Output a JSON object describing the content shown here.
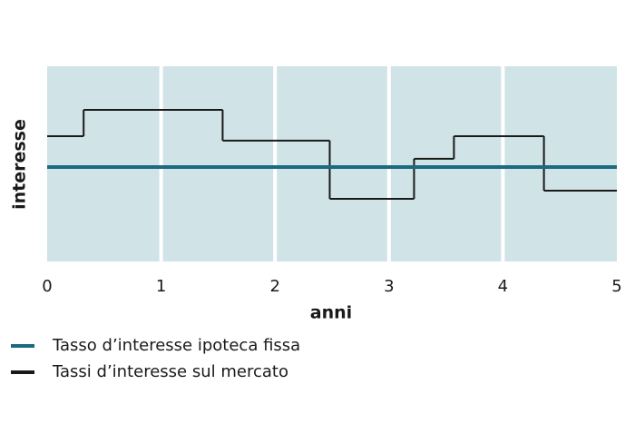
{
  "chart_data": {
    "type": "step",
    "x_label": "anni",
    "y_label": "interesse",
    "xlim": [
      0,
      5
    ],
    "xticks": [
      0,
      1,
      2,
      3,
      4,
      5
    ],
    "ylim": [
      0,
      100
    ],
    "panels": true,
    "legend": "bottom",
    "series": [
      {
        "name": "Tasso d’interesse ipoteca fissa",
        "color": "#1b6a80",
        "x": [
          0,
          5
        ],
        "values": [
          48.4,
          48.4
        ]
      },
      {
        "name": "Tassi d’interesse sul mercato",
        "color": "#1a1a1a",
        "x": [
          0,
          0.32,
          1.54,
          2.48,
          3.22,
          3.57,
          4.36
        ],
        "values": [
          64.2,
          77.7,
          61.9,
          32.1,
          52.6,
          64.2,
          36.3
        ]
      }
    ]
  }
}
